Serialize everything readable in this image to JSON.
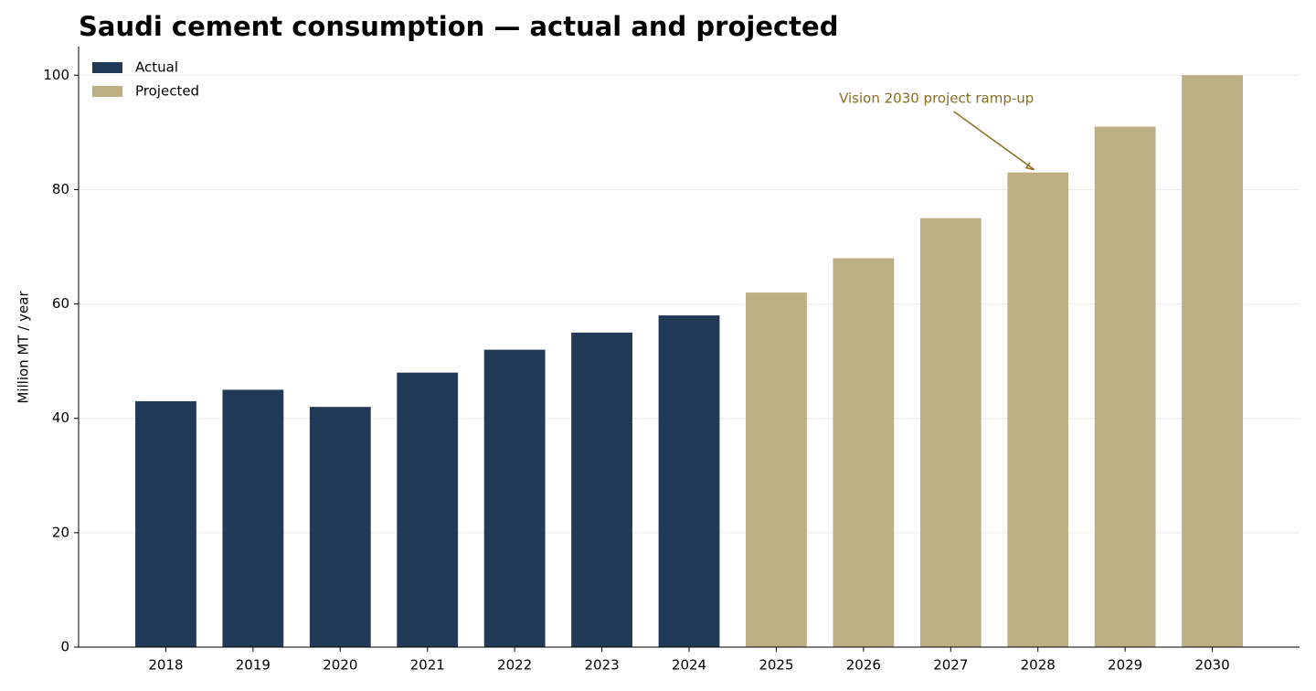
{
  "chart_data": {
    "type": "bar",
    "title": "Saudi cement consumption — actual and projected",
    "y_label": "Million MT / year",
    "categories": [
      "2018",
      "2019",
      "2020",
      "2021",
      "2022",
      "2023",
      "2024",
      "2025",
      "2026",
      "2027",
      "2028",
      "2029",
      "2030"
    ],
    "series": [
      {
        "name": "Actual",
        "color": "#213a58",
        "values": [
          43,
          45,
          42,
          48,
          52,
          55,
          58,
          null,
          null,
          null,
          null,
          null,
          null
        ]
      },
      {
        "name": "Projected",
        "color": "#bdaf83",
        "values": [
          null,
          null,
          null,
          null,
          null,
          null,
          null,
          62,
          68,
          75,
          83,
          91,
          100
        ]
      }
    ],
    "ylim": [
      0,
      105
    ],
    "yticks": [
      0,
      20,
      40,
      60,
      80,
      100
    ],
    "grid": true,
    "legend": "upper left",
    "annotation": {
      "text": "Vision 2030 project ramp-up",
      "x": "2028",
      "y": 83,
      "color": "#8a6d1e"
    }
  }
}
